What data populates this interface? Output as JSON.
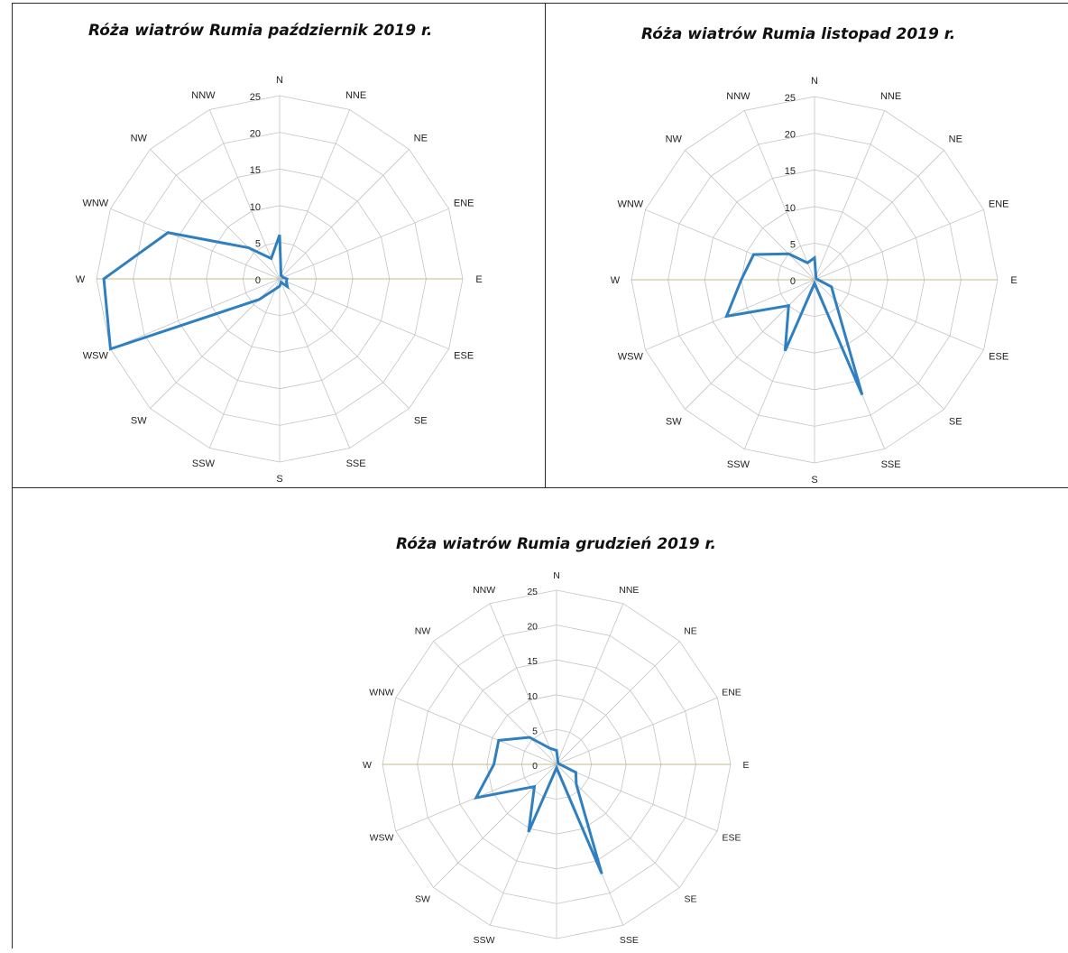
{
  "chart_data": [
    {
      "type": "radar",
      "title": "Róża wiatrów Rumia październik 2019 r.",
      "categories": [
        "N",
        "NNE",
        "NE",
        "ENE",
        "E",
        "ESE",
        "SE",
        "SSE",
        "S",
        "SSW",
        "SW",
        "WSW",
        "W",
        "WNW",
        "NW",
        "NNW"
      ],
      "tick_labels": [
        "0",
        "5",
        "10",
        "15",
        "20",
        "25"
      ],
      "rlim": [
        0,
        25
      ],
      "grid": true,
      "series": [
        {
          "values": [
            6,
            0.5,
            0.5,
            0.5,
            1,
            1,
            1.5,
            0.5,
            1,
            1.5,
            4,
            25,
            24,
            16.5,
            6,
            3
          ],
          "color": "#2f7fc1"
        }
      ]
    },
    {
      "type": "radar",
      "title": "Róża wiatrów Rumia listopad 2019 r.",
      "categories": [
        "N",
        "NNE",
        "NE",
        "ENE",
        "E",
        "ESE",
        "SE",
        "SSE",
        "S",
        "SSW",
        "SW",
        "WSW",
        "W",
        "WNW",
        "NW",
        "NNW"
      ],
      "tick_labels": [
        "0",
        "5",
        "10",
        "15",
        "20",
        "25"
      ],
      "rlim": [
        0,
        25
      ],
      "grid": true,
      "series": [
        {
          "values": [
            3,
            0.5,
            0.3,
            0.3,
            0.5,
            2.5,
            4,
            17,
            0.5,
            10.5,
            5,
            13,
            10,
            9,
            5,
            2.5
          ],
          "color": "#2f7fc1"
        }
      ]
    },
    {
      "type": "radar",
      "title": "Róża wiatrów Rumia grudzień 2019 r.",
      "categories": [
        "N",
        "NNE",
        "NE",
        "ENE",
        "E",
        "ESE",
        "SE",
        "SSE",
        "S",
        "SSW",
        "SW",
        "WSW",
        "W",
        "WNW",
        "NW",
        "NNW"
      ],
      "tick_labels": [
        "0",
        "5",
        "10",
        "15",
        "20",
        "25"
      ],
      "rlim": [
        0,
        25
      ],
      "grid": true,
      "series": [
        {
          "values": [
            2,
            0.5,
            0.3,
            0.3,
            0.5,
            3,
            4,
            17,
            0.5,
            10.5,
            4.5,
            12.5,
            9,
            9,
            5.5,
            2.5
          ],
          "color": "#2f7fc1"
        }
      ]
    }
  ]
}
